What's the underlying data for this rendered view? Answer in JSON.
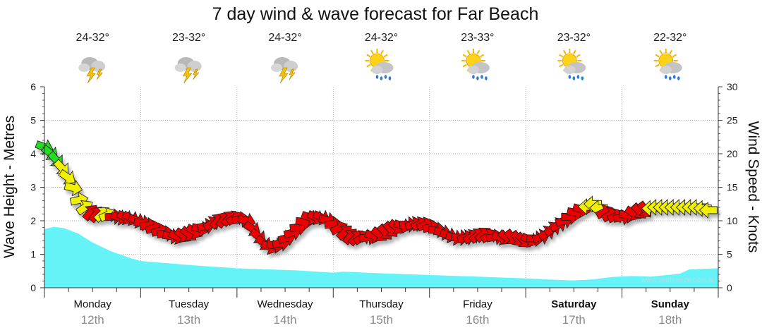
{
  "chart_data": {
    "type": "area",
    "title": "7 day wind & wave forecast for Far Beach",
    "ylabel_left": "Wave Height - Metres",
    "ylabel_right": "Wind Speed - Knots",
    "ylim_left": [
      0,
      6
    ],
    "ylim_right": [
      0,
      30
    ],
    "yticks_left": [
      "0",
      "1",
      "2",
      "3",
      "4",
      "5",
      "6"
    ],
    "yticks_right": [
      "0",
      "5",
      "10",
      "15",
      "20",
      "25",
      "30"
    ],
    "grid": true,
    "credit": "www.seabreeze.com.au",
    "days": [
      {
        "name": "Monday",
        "date": "12th",
        "temp": "24-32°",
        "weather": "storm-icon",
        "bold": false
      },
      {
        "name": "Tuesday",
        "date": "13th",
        "temp": "23-32°",
        "weather": "storm-icon",
        "bold": false
      },
      {
        "name": "Wednesday",
        "date": "14th",
        "temp": "24-32°",
        "weather": "storm-icon",
        "bold": false
      },
      {
        "name": "Thursday",
        "date": "15th",
        "temp": "24-32°",
        "weather": "sun-rain-icon",
        "bold": false
      },
      {
        "name": "Friday",
        "date": "16th",
        "temp": "23-33°",
        "weather": "sun-rain-icon",
        "bold": false
      },
      {
        "name": "Saturday",
        "date": "17th",
        "temp": "23-32°",
        "weather": "sun-rain-icon",
        "bold": true
      },
      {
        "name": "Sunday",
        "date": "18th",
        "temp": "22-32°",
        "weather": "sun-rain-icon",
        "bold": true
      }
    ],
    "wave_series": {
      "name": "Wave Height",
      "color": "#66f3f7",
      "day_fraction": [
        0,
        0.1,
        0.2,
        0.35,
        0.5,
        0.7,
        0.9,
        1.0,
        1.2,
        1.5,
        1.8,
        2.0,
        2.3,
        2.6,
        3.0,
        3.1,
        3.2,
        3.5,
        4.0,
        4.5,
        5.0,
        5.2,
        5.5,
        5.7,
        5.9,
        6.1,
        6.3,
        6.6,
        6.7,
        7.0
      ],
      "metres": [
        1.75,
        1.82,
        1.78,
        1.62,
        1.35,
        1.08,
        0.88,
        0.8,
        0.75,
        0.68,
        0.62,
        0.58,
        0.55,
        0.52,
        0.45,
        0.48,
        0.47,
        0.43,
        0.38,
        0.33,
        0.28,
        0.25,
        0.22,
        0.25,
        0.32,
        0.35,
        0.33,
        0.42,
        0.55,
        0.58
      ]
    },
    "wind_series": {
      "name": "Wind Speed",
      "colors": {
        "green": "#22dd22",
        "yellow": "#f0f000",
        "red": "#ee0000"
      },
      "points": [
        {
          "t": 0.0,
          "knots": 21,
          "color": "green"
        },
        {
          "t": 0.1,
          "knots": 19.5,
          "color": "green"
        },
        {
          "t": 0.2,
          "knots": 17.5,
          "color": "yellow"
        },
        {
          "t": 0.28,
          "knots": 15.5,
          "color": "yellow"
        },
        {
          "t": 0.38,
          "knots": 12.5,
          "color": "yellow"
        },
        {
          "t": 0.5,
          "knots": 11,
          "color": "red"
        },
        {
          "t": 0.63,
          "knots": 11,
          "color": "yellow"
        },
        {
          "t": 0.75,
          "knots": 10.5,
          "color": "red"
        },
        {
          "t": 0.88,
          "knots": 10.5,
          "color": "red"
        },
        {
          "t": 1.05,
          "knots": 9.5,
          "color": "red"
        },
        {
          "t": 1.2,
          "knots": 8.5,
          "color": "red"
        },
        {
          "t": 1.35,
          "knots": 7.5,
          "color": "red"
        },
        {
          "t": 1.5,
          "knots": 8,
          "color": "red"
        },
        {
          "t": 1.65,
          "knots": 9,
          "color": "red"
        },
        {
          "t": 1.8,
          "knots": 10,
          "color": "red"
        },
        {
          "t": 1.95,
          "knots": 10.5,
          "color": "red"
        },
        {
          "t": 2.1,
          "knots": 10,
          "color": "red"
        },
        {
          "t": 2.2,
          "knots": 8,
          "color": "red"
        },
        {
          "t": 2.32,
          "knots": 6,
          "color": "red"
        },
        {
          "t": 2.45,
          "knots": 6.5,
          "color": "red"
        },
        {
          "t": 2.6,
          "knots": 8.5,
          "color": "red"
        },
        {
          "t": 2.75,
          "knots": 10.5,
          "color": "red"
        },
        {
          "t": 2.9,
          "knots": 10.5,
          "color": "red"
        },
        {
          "t": 3.05,
          "knots": 9,
          "color": "red"
        },
        {
          "t": 3.2,
          "knots": 7.5,
          "color": "red"
        },
        {
          "t": 3.35,
          "knots": 7.5,
          "color": "red"
        },
        {
          "t": 3.5,
          "knots": 8,
          "color": "red"
        },
        {
          "t": 3.65,
          "knots": 9,
          "color": "red"
        },
        {
          "t": 3.8,
          "knots": 9.5,
          "color": "red"
        },
        {
          "t": 3.95,
          "knots": 9.5,
          "color": "red"
        },
        {
          "t": 4.1,
          "knots": 8.5,
          "color": "red"
        },
        {
          "t": 4.25,
          "knots": 7.5,
          "color": "red"
        },
        {
          "t": 4.4,
          "knots": 7.5,
          "color": "red"
        },
        {
          "t": 4.55,
          "knots": 8,
          "color": "red"
        },
        {
          "t": 4.7,
          "knots": 7.5,
          "color": "red"
        },
        {
          "t": 4.85,
          "knots": 7.5,
          "color": "red"
        },
        {
          "t": 5.0,
          "knots": 7,
          "color": "red"
        },
        {
          "t": 5.15,
          "knots": 7.5,
          "color": "red"
        },
        {
          "t": 5.3,
          "knots": 9,
          "color": "red"
        },
        {
          "t": 5.45,
          "knots": 10.5,
          "color": "red"
        },
        {
          "t": 5.55,
          "knots": 11.5,
          "color": "red"
        },
        {
          "t": 5.7,
          "knots": 12.5,
          "color": "yellow"
        },
        {
          "t": 5.85,
          "knots": 11,
          "color": "red"
        },
        {
          "t": 6.0,
          "knots": 10.5,
          "color": "red"
        },
        {
          "t": 6.1,
          "knots": 11,
          "color": "red"
        },
        {
          "t": 6.2,
          "knots": 11.5,
          "color": "red"
        },
        {
          "t": 6.35,
          "knots": 12,
          "color": "yellow"
        },
        {
          "t": 6.5,
          "knots": 12,
          "color": "yellow"
        },
        {
          "t": 6.65,
          "knots": 12,
          "color": "yellow"
        },
        {
          "t": 6.8,
          "knots": 12,
          "color": "yellow"
        },
        {
          "t": 6.92,
          "knots": 11.5,
          "color": "yellow"
        }
      ]
    }
  }
}
